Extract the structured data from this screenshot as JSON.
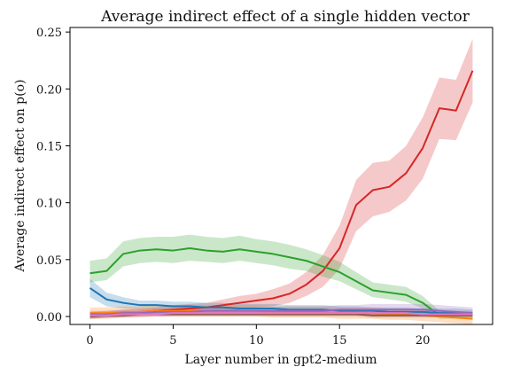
{
  "chart_data": {
    "type": "line",
    "title": "Average indirect effect of a single hidden vector",
    "xlabel": "Layer number in gpt2-medium",
    "ylabel": "Average indirect effect on p(o)",
    "xlim": [
      -1.2,
      24.2
    ],
    "ylim": [
      -0.007,
      0.254
    ],
    "xticks": [
      0,
      5,
      10,
      15,
      20
    ],
    "yticks": [
      0.0,
      0.05,
      0.1,
      0.15,
      0.2,
      0.25
    ],
    "ytick_labels": [
      "0.00",
      "0.05",
      "0.10",
      "0.15",
      "0.20",
      "0.25"
    ],
    "grid": false,
    "legend": "none",
    "x": [
      0,
      1,
      2,
      3,
      4,
      5,
      6,
      7,
      8,
      9,
      10,
      11,
      12,
      13,
      14,
      15,
      16,
      17,
      18,
      19,
      20,
      21,
      22,
      23
    ],
    "series": [
      {
        "color": "#d62728",
        "values": [
          0.001,
          0.002,
          0.003,
          0.004,
          0.005,
          0.006,
          0.007,
          0.008,
          0.01,
          0.012,
          0.014,
          0.016,
          0.02,
          0.028,
          0.04,
          0.06,
          0.098,
          0.111,
          0.114,
          0.126,
          0.148,
          0.183,
          0.181,
          0.216
        ],
        "lower": [
          -0.002,
          -0.001,
          0.0,
          0.001,
          0.002,
          0.002,
          0.003,
          0.004,
          0.005,
          0.006,
          0.008,
          0.009,
          0.012,
          0.018,
          0.026,
          0.042,
          0.075,
          0.088,
          0.092,
          0.102,
          0.121,
          0.156,
          0.155,
          0.188
        ],
        "upper": [
          0.004,
          0.005,
          0.006,
          0.007,
          0.008,
          0.01,
          0.011,
          0.012,
          0.015,
          0.018,
          0.02,
          0.024,
          0.029,
          0.039,
          0.054,
          0.08,
          0.12,
          0.135,
          0.137,
          0.15,
          0.175,
          0.21,
          0.208,
          0.244
        ]
      },
      {
        "color": "#2ca02c",
        "values": [
          0.038,
          0.04,
          0.055,
          0.058,
          0.059,
          0.058,
          0.06,
          0.058,
          0.057,
          0.059,
          0.057,
          0.055,
          0.052,
          0.049,
          0.044,
          0.039,
          0.031,
          0.023,
          0.021,
          0.019,
          0.012,
          0.001,
          0.001,
          0.001
        ],
        "lower": [
          0.03,
          0.032,
          0.044,
          0.047,
          0.048,
          0.047,
          0.049,
          0.048,
          0.047,
          0.049,
          0.047,
          0.045,
          0.042,
          0.04,
          0.035,
          0.031,
          0.024,
          0.017,
          0.015,
          0.013,
          0.007,
          -0.002,
          -0.002,
          -0.002
        ],
        "upper": [
          0.049,
          0.051,
          0.066,
          0.069,
          0.07,
          0.07,
          0.072,
          0.07,
          0.069,
          0.071,
          0.068,
          0.066,
          0.063,
          0.059,
          0.054,
          0.048,
          0.039,
          0.03,
          0.028,
          0.026,
          0.018,
          0.005,
          0.005,
          0.005
        ]
      },
      {
        "color": "#1f77b4",
        "values": [
          0.025,
          0.015,
          0.012,
          0.01,
          0.01,
          0.009,
          0.009,
          0.008,
          0.008,
          0.007,
          0.007,
          0.007,
          0.006,
          0.006,
          0.006,
          0.005,
          0.005,
          0.005,
          0.004,
          0.004,
          0.004,
          0.003,
          0.003,
          0.003
        ],
        "lower": [
          0.017,
          0.009,
          0.007,
          0.006,
          0.006,
          0.005,
          0.005,
          0.004,
          0.004,
          0.004,
          0.003,
          0.003,
          0.003,
          0.003,
          0.002,
          0.002,
          0.002,
          0.002,
          0.001,
          0.001,
          0.001,
          0.0,
          0.0,
          0.0
        ],
        "upper": [
          0.033,
          0.021,
          0.017,
          0.014,
          0.014,
          0.013,
          0.013,
          0.012,
          0.012,
          0.011,
          0.011,
          0.011,
          0.01,
          0.01,
          0.01,
          0.009,
          0.009,
          0.008,
          0.008,
          0.008,
          0.007,
          0.007,
          0.007,
          0.006
        ]
      },
      {
        "color": "#ff7f0e",
        "values": [
          0.003,
          0.003,
          0.004,
          0.004,
          0.005,
          0.005,
          0.005,
          0.005,
          0.005,
          0.005,
          0.005,
          0.004,
          0.004,
          0.004,
          0.004,
          0.003,
          0.003,
          0.003,
          0.002,
          0.002,
          0.001,
          0.0,
          -0.001,
          -0.002
        ],
        "lower": [
          -0.002,
          -0.002,
          -0.001,
          -0.001,
          0.0,
          0.0,
          0.0,
          0.0,
          0.0,
          0.0,
          0.0,
          -0.001,
          -0.001,
          -0.001,
          -0.001,
          -0.002,
          -0.002,
          -0.002,
          -0.003,
          -0.003,
          -0.004,
          -0.005,
          -0.006,
          -0.007
        ],
        "upper": [
          0.008,
          0.008,
          0.009,
          0.009,
          0.01,
          0.01,
          0.01,
          0.01,
          0.01,
          0.01,
          0.01,
          0.009,
          0.009,
          0.009,
          0.009,
          0.008,
          0.008,
          0.008,
          0.007,
          0.007,
          0.006,
          0.005,
          0.004,
          0.003
        ]
      },
      {
        "color": "#9467bd",
        "values": [
          0.002,
          0.002,
          0.003,
          0.003,
          0.004,
          0.004,
          0.004,
          0.005,
          0.005,
          0.005,
          0.005,
          0.005,
          0.005,
          0.005,
          0.005,
          0.006,
          0.006,
          0.006,
          0.006,
          0.006,
          0.006,
          0.005,
          0.004,
          0.003
        ],
        "lower": [
          -0.001,
          -0.001,
          0.0,
          0.0,
          0.001,
          0.001,
          0.001,
          0.002,
          0.002,
          0.002,
          0.002,
          0.002,
          0.002,
          0.002,
          0.002,
          0.002,
          0.002,
          0.002,
          0.002,
          0.002,
          0.002,
          0.001,
          0.0,
          0.0
        ],
        "upper": [
          0.005,
          0.005,
          0.006,
          0.006,
          0.007,
          0.007,
          0.007,
          0.008,
          0.008,
          0.008,
          0.008,
          0.008,
          0.009,
          0.009,
          0.009,
          0.01,
          0.01,
          0.011,
          0.011,
          0.011,
          0.011,
          0.01,
          0.009,
          0.008
        ]
      },
      {
        "color": "#8c564b",
        "values": [
          0.0,
          0.001,
          0.001,
          0.002,
          0.002,
          0.002,
          0.002,
          0.002,
          0.002,
          0.002,
          0.002,
          0.002,
          0.002,
          0.002,
          0.002,
          0.002,
          0.002,
          0.001,
          0.001,
          0.001,
          0.001,
          0.001,
          0.001,
          0.001
        ],
        "lower": [
          -0.002,
          -0.001,
          -0.001,
          0.0,
          0.0,
          0.0,
          0.0,
          0.0,
          0.0,
          0.0,
          0.0,
          0.0,
          0.0,
          0.0,
          0.0,
          0.0,
          0.0,
          -0.001,
          -0.001,
          -0.001,
          -0.001,
          -0.001,
          -0.001,
          -0.001
        ],
        "upper": [
          0.002,
          0.003,
          0.003,
          0.004,
          0.004,
          0.004,
          0.004,
          0.004,
          0.004,
          0.004,
          0.004,
          0.004,
          0.004,
          0.004,
          0.004,
          0.004,
          0.004,
          0.003,
          0.003,
          0.003,
          0.003,
          0.003,
          0.003,
          0.003
        ]
      },
      {
        "color": "#e377c2",
        "values": [
          0.001,
          0.001,
          0.002,
          0.002,
          0.002,
          0.003,
          0.003,
          0.003,
          0.003,
          0.003,
          0.003,
          0.003,
          0.003,
          0.003,
          0.003,
          0.003,
          0.003,
          0.003,
          0.003,
          0.003,
          0.002,
          0.002,
          0.002,
          0.002
        ],
        "lower": [
          -0.001,
          -0.001,
          0.0,
          0.0,
          0.0,
          0.001,
          0.001,
          0.001,
          0.001,
          0.001,
          0.001,
          0.001,
          0.001,
          0.001,
          0.001,
          0.001,
          0.001,
          0.001,
          0.001,
          0.001,
          0.0,
          0.0,
          0.0,
          0.0
        ],
        "upper": [
          0.003,
          0.003,
          0.004,
          0.004,
          0.004,
          0.005,
          0.005,
          0.005,
          0.005,
          0.005,
          0.005,
          0.005,
          0.005,
          0.005,
          0.005,
          0.005,
          0.005,
          0.005,
          0.005,
          0.005,
          0.004,
          0.004,
          0.004,
          0.004
        ]
      }
    ]
  }
}
